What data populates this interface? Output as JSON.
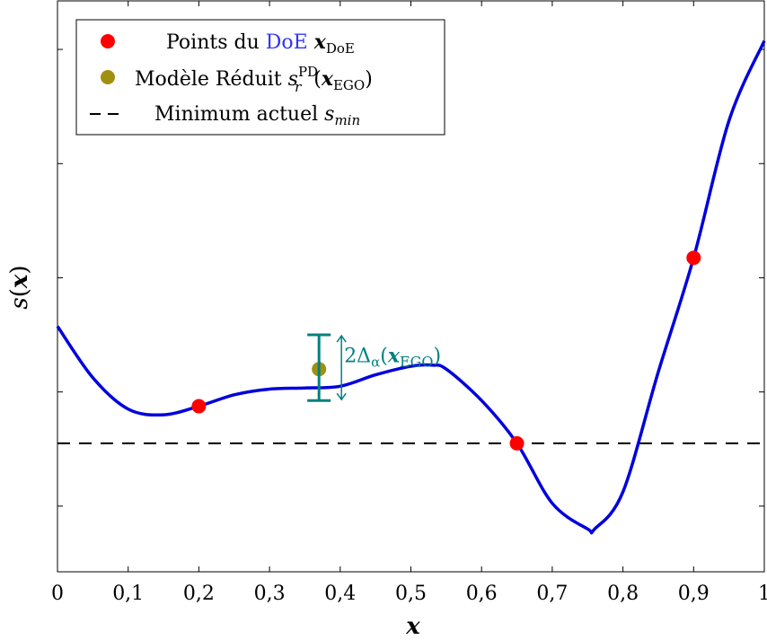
{
  "chart_data": {
    "type": "line",
    "xlabel": "x",
    "ylabel": "s(x)",
    "xlim": [
      0,
      1
    ],
    "ylim": [
      0,
      1
    ],
    "x_ticks": [
      "0",
      "0,1",
      "0,2",
      "0,3",
      "0,4",
      "0,5",
      "0,6",
      "0,7",
      "0,8",
      "0,9",
      "1"
    ],
    "x_tick_values": [
      0,
      0.1,
      0.2,
      0.3,
      0.4,
      0.5,
      0.6,
      0.7,
      0.8,
      0.9,
      1
    ],
    "y_tick_values": [
      0.115,
      0.315,
      0.515,
      0.715,
      0.915
    ],
    "y_tick_labels_shown": false,
    "grid": false,
    "legend_position": "top-left",
    "series": [
      {
        "name": "",
        "kind": "line",
        "color": "#0000dd",
        "x": [
          0,
          0.05,
          0.1,
          0.15,
          0.2,
          0.25,
          0.3,
          0.35,
          0.4,
          0.45,
          0.5,
          0.53,
          0.55,
          0.6,
          0.65,
          0.7,
          0.75,
          0.76,
          0.8,
          0.85,
          0.9,
          0.95,
          1.0
        ],
        "y": [
          0.43,
          0.34,
          0.285,
          0.275,
          0.29,
          0.31,
          0.32,
          0.322,
          0.325,
          0.345,
          0.36,
          0.362,
          0.355,
          0.3,
          0.225,
          0.12,
          0.075,
          0.075,
          0.14,
          0.35,
          0.55,
          0.79,
          0.93
        ]
      },
      {
        "name": "Points du DoE",
        "legend_math": "x_DoE",
        "kind": "scatter",
        "color": "#ff0000",
        "x": [
          0.2,
          0.65,
          0.9
        ],
        "y": [
          0.29,
          0.225,
          0.55
        ]
      },
      {
        "name": "Modèle Réduit",
        "legend_math": "s_r^PD(x_EGO)",
        "kind": "scatter",
        "color": "#a0900f",
        "x": [
          0.37
        ],
        "y": [
          0.355
        ]
      },
      {
        "name": "Minimum actuel",
        "legend_math": "s_min",
        "kind": "hline",
        "color": "#000000",
        "y": 0.225
      }
    ],
    "annotations": [
      {
        "type": "errorbar",
        "color": "#008080",
        "x": 0.37,
        "y_low": 0.3,
        "y_high": 0.415,
        "label": "2Δα(x_EGO)"
      }
    ]
  },
  "legend": {
    "doe_label": "Points du ",
    "doe_link": "DoE",
    "doe_math_base": "x",
    "doe_math_sub": "DoE",
    "model_label": "Modèle Réduit ",
    "model_math_base": "s",
    "model_math_sup": "PD",
    "model_math_sub": "r",
    "model_arg_base": "x",
    "model_arg_sub": "EGO",
    "min_label": "Minimum actuel ",
    "min_math_base": "s",
    "min_math_sub": "min",
    "doe_link_color": "#3333ff"
  },
  "annotation_text": {
    "prefix": "2Δ",
    "alpha": "α",
    "arg_base": "x",
    "arg_sub": "EGO"
  }
}
